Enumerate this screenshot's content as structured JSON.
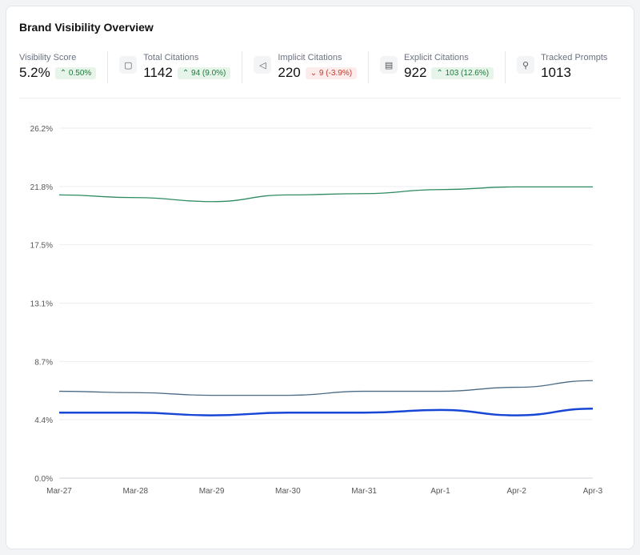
{
  "title": "Brand Visibility Overview",
  "stats": [
    {
      "label": "Visibility Score",
      "value": "5.2%",
      "delta": "0.50%",
      "direction": "up",
      "icon": ""
    },
    {
      "label": "Total Citations",
      "value": "1142",
      "delta": "94 (9.0%)",
      "direction": "up",
      "icon": "message-icon"
    },
    {
      "label": "Implicit Citations",
      "value": "220",
      "delta": "9 (-3.9%)",
      "direction": "down",
      "icon": "megaphone-icon"
    },
    {
      "label": "Explicit Citations",
      "value": "922",
      "delta": "103 (12.6%)",
      "direction": "up",
      "icon": "document-icon"
    },
    {
      "label": "Tracked Prompts",
      "value": "1013",
      "delta": null,
      "direction": null,
      "icon": "search-icon"
    }
  ],
  "chart_data": {
    "type": "line",
    "categories": [
      "Mar-27",
      "Mar-28",
      "Mar-29",
      "Mar-30",
      "Mar-31",
      "Apr-1",
      "Apr-2",
      "Apr-3"
    ],
    "yticks": [
      "0.0%",
      "4.4%",
      "8.7%",
      "13.1%",
      "17.5%",
      "21.8%",
      "26.2%"
    ],
    "ylim": [
      0,
      26.2
    ],
    "grid": true,
    "series": [
      {
        "color": "#2e8b62",
        "values": [
          21.2,
          21.0,
          20.7,
          21.2,
          21.3,
          21.6,
          21.8,
          21.8
        ]
      },
      {
        "color": "#4a6b85",
        "values": [
          6.5,
          6.4,
          6.2,
          6.2,
          6.5,
          6.5,
          6.8,
          7.3
        ]
      },
      {
        "color": "#1746d6",
        "values": [
          4.9,
          4.9,
          4.7,
          4.9,
          4.9,
          5.1,
          4.7,
          5.2
        ]
      }
    ]
  }
}
